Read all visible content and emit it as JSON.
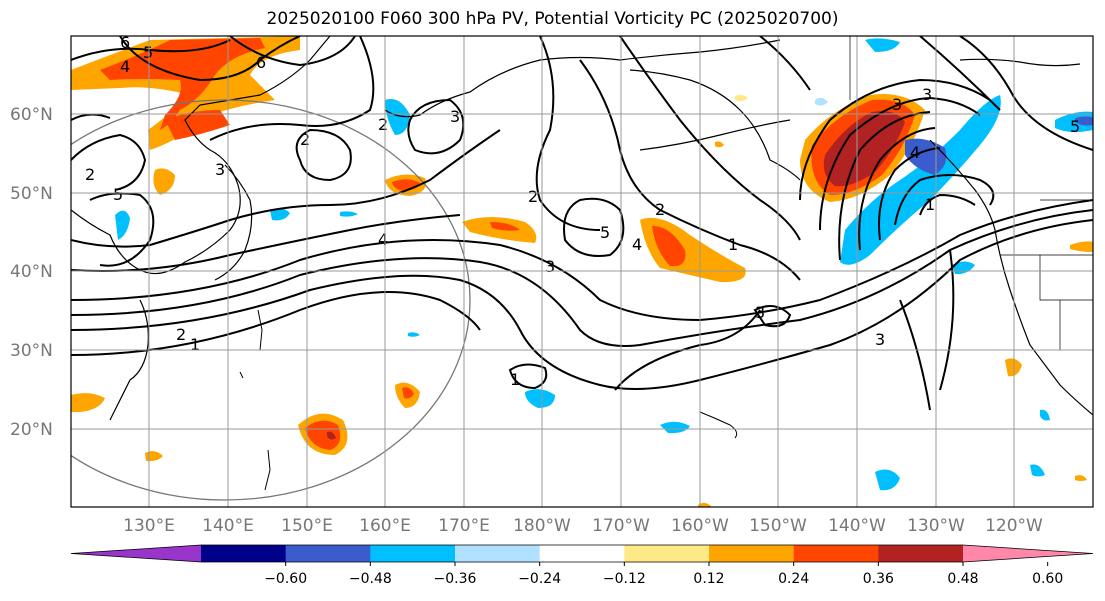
{
  "title": "2025020100 F060 300 hPa PV, Potential Vorticity PC (2025020700)",
  "lat_labels": [
    "60°N",
    "50°N",
    "40°N",
    "30°N",
    "20°N"
  ],
  "lon_labels": [
    "130°E",
    "140°E",
    "150°E",
    "160°E",
    "170°E",
    "180°W",
    "170°W",
    "160°W",
    "150°W",
    "140°W",
    "130°W",
    "120°W"
  ],
  "contour_labels": [
    "6",
    "5",
    "4",
    "6",
    "2",
    "2",
    "3",
    "5",
    "2",
    "4",
    "2",
    "5",
    "4",
    "2",
    "1",
    "3",
    "3",
    "3",
    "3",
    "4",
    "1",
    "3",
    "3",
    "2",
    "1",
    "1",
    "5"
  ],
  "colorbar": {
    "ticks": [
      "−0.60",
      "−0.48",
      "−0.36",
      "−0.24",
      "−0.12",
      "0.12",
      "0.24",
      "0.36",
      "0.48",
      "0.60"
    ],
    "colors": [
      "#9a35cc",
      "#00008b",
      "#3a5ccc",
      "#00bfff",
      "#b0e2ff",
      "#ffffff",
      "#ffe987",
      "#ffa500",
      "#ff4500",
      "#b22222",
      "#ff88aa"
    ]
  },
  "shading_colors": {
    "pos_low": "#ffe987",
    "pos_mid": "#ffa500",
    "pos_high": "#ff4500",
    "pos_max": "#b22222",
    "neg_low": "#b0e2ff",
    "neg_mid": "#00bfff",
    "neg_high": "#3a5ccc"
  }
}
